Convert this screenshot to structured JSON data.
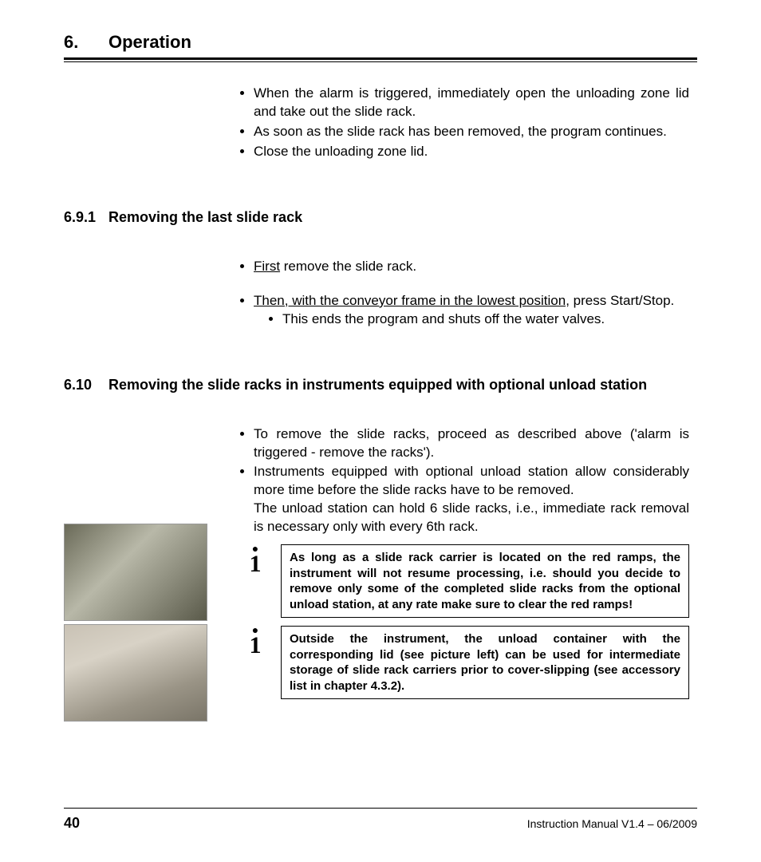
{
  "chapter": {
    "number": "6.",
    "title": "Operation"
  },
  "intro_bullets": [
    "When the alarm is triggered, immediately open the unloading zone lid and take out the slide rack.",
    "As soon as the slide rack has been removed, the program continues.",
    "Close the unloading zone lid."
  ],
  "sec_691": {
    "num": "6.9.1",
    "title": "Removing the last slide rack",
    "b1_u": "First",
    "b1_rest": " remove the slide rack.",
    "b2_u": "Then, with the conveyor frame in the lowest position,",
    "b2_rest": " press Start/Stop.",
    "b2_sub": "This ends the program and shuts off the water valves."
  },
  "sec_610": {
    "num": "6.10",
    "title": "Removing the slide racks in instruments equipped with optional unload station",
    "b1": "To remove the slide racks, proceed as described above ('alarm is triggered - remove the racks').",
    "b2a": "Instruments equipped with optional unload station allow considerably more time before the slide racks have to be removed.",
    "b2b": "The unload station can hold 6 slide racks, i.e., immediate rack removal is necessary only with every 6th rack."
  },
  "note1": "As long as a slide rack carrier is located on the red ramps, the instrument will not resume processing, i.e. should you decide to remove only some of the completed slide racks from the optional unload station, at any rate make sure to clear the red ramps!",
  "note2": "Outside the instrument, the unload container with the corresponding lid (see picture left) can be used for intermediate storage of slide rack carriers prior to cover-slipping (see accessory list in chapter 4.3.2).",
  "footer": {
    "page": "40",
    "version": "Instruction Manual V1.4 – 06/2009"
  }
}
